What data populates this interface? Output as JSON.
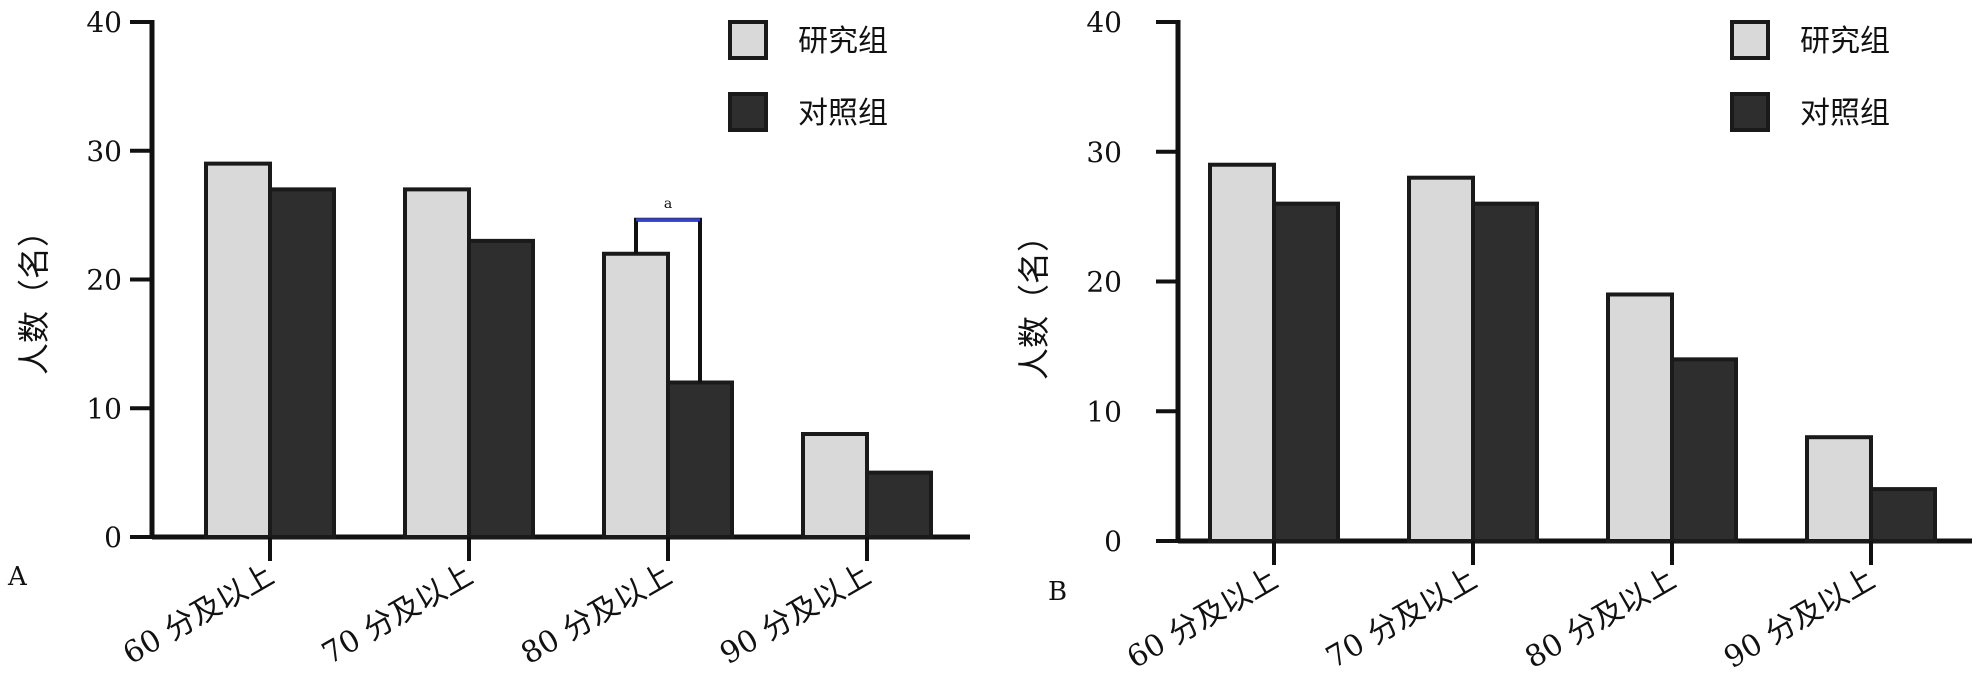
{
  "colors": {
    "study": "#d9d9d9",
    "control": "#2e2e2e",
    "axis": "#111111",
    "bracket": "#3344cc"
  },
  "chart_data": [
    {
      "type": "bar",
      "panel_label": "A",
      "categories": [
        "60 分及以上",
        "70 分及以上",
        "80 分及以上",
        "90 分及以上"
      ],
      "series": [
        {
          "name": "研究组",
          "values": [
            29,
            27,
            22,
            8
          ]
        },
        {
          "name": "对照组",
          "values": [
            27,
            23,
            12,
            5
          ]
        }
      ],
      "ylabel": "人数（名）",
      "ylim": [
        0,
        40
      ],
      "yticks": [
        0,
        10,
        20,
        30,
        40
      ],
      "legend": "top-right",
      "grid": false,
      "annotation": {
        "category": "80 分及以上",
        "text": "a"
      }
    },
    {
      "type": "bar",
      "panel_label": "B",
      "categories": [
        "60 分及以上",
        "70 分及以上",
        "80 分及以上",
        "90 分及以上"
      ],
      "series": [
        {
          "name": "研究组",
          "values": [
            29,
            28,
            19,
            8
          ]
        },
        {
          "name": "对照组",
          "values": [
            26,
            26,
            14,
            4
          ]
        }
      ],
      "ylabel": "人数（名）",
      "ylim": [
        0,
        40
      ],
      "yticks": [
        0,
        10,
        20,
        30,
        40
      ],
      "legend": "top-right",
      "grid": false
    }
  ]
}
